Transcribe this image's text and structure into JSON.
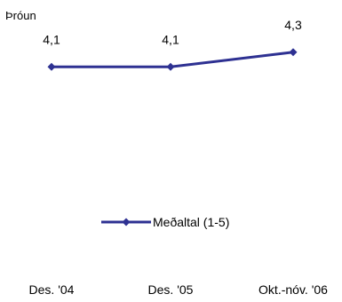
{
  "chart_data": {
    "type": "line",
    "ylabel": "Þróun",
    "categories": [
      "Des. '04",
      "Des. '05",
      "Okt.-nóv. '06"
    ],
    "series": [
      {
        "name": "Meðaltal (1-5)",
        "values": [
          4.1,
          4.1,
          4.3
        ],
        "data_labels": [
          "4,1",
          "4,1",
          "4,3"
        ],
        "color": "#2e3192"
      }
    ],
    "ylim": [
      1,
      5
    ],
    "grid": false,
    "legend_position": "bottom"
  }
}
